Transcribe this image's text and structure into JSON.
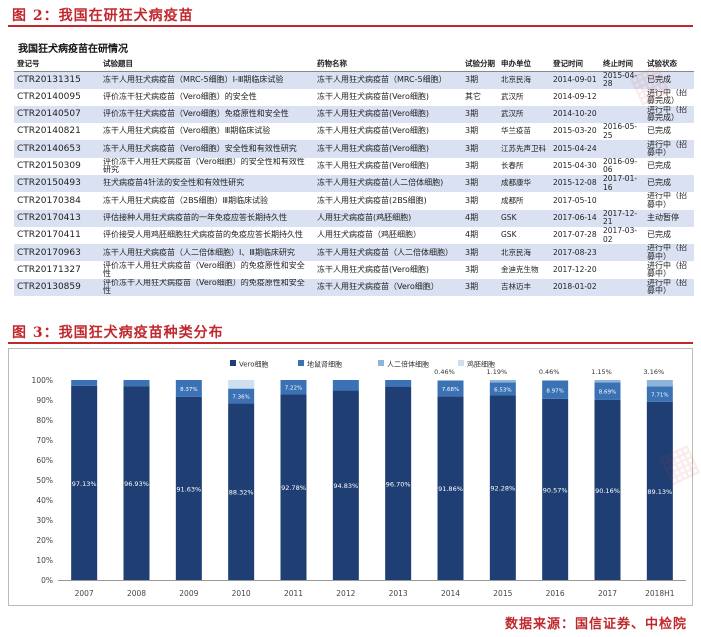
{
  "fig2": {
    "title": "图 2：我国在研狂犬病疫苗"
  },
  "table": {
    "title": "我国狂犬病疫苗在研情况",
    "headers": [
      "登记号",
      "试验题目",
      "药物名称",
      "试验分期",
      "申办单位",
      "登记时间",
      "终止时间",
      "试验状态"
    ],
    "rows": [
      [
        "CTR20131315",
        "冻干人用狂犬病疫苗（MRC-5细胞）Ⅰ-Ⅲ期临床试验",
        "冻干人用狂犬病疫苗（MRC-5细胞）",
        "3期",
        "北京民海",
        "2014-09-01",
        "2015-04-28",
        "已完成"
      ],
      [
        "CTR20140095",
        "评价冻干狂犬病疫苗（Vero细胞）的安全性",
        "冻干人用狂犬病疫苗(Vero细胞)",
        "其它",
        "武汉所",
        "2014-09-12",
        "",
        "进行中（招募完成）"
      ],
      [
        "CTR20140507",
        "评价冻干狂犬病疫苗（Vero细胞）免疫原性和安全性",
        "冻干人用狂犬病疫苗(Vero细胞)",
        "3期",
        "武汉所",
        "2014-10-20",
        "",
        "进行中（招募完成）"
      ],
      [
        "CTR20140821",
        "冻干人用狂犬病疫苗（Vero细胞）Ⅲ期临床试验",
        "冻干人用狂犬病疫苗(Vero细胞)",
        "3期",
        "华兰疫苗",
        "2015-03-20",
        "2016-05-25",
        "已完成"
      ],
      [
        "CTR20140653",
        "冻干人用狂犬病疫苗（Vero细胞）安全性和有效性研究",
        "冻干人用狂犬病疫苗(Vero细胞)",
        "3期",
        "江苏先声卫科",
        "2015-04-24",
        "",
        "进行中（招募中）"
      ],
      [
        "CTR20150309",
        "评价冻干人用狂犬病疫苗（Vero细胞）的安全性和有效性研究",
        "冻干人用狂犬病疫苗(Vero细胞)",
        "3期",
        "长春所",
        "2015-04-30",
        "2016-09-06",
        "已完成"
      ],
      [
        "CTR20150493",
        "狂犬病疫苗4针法的安全性和有效性研究",
        "冻干人用狂犬病疫苗(人二倍体细胞)",
        "3期",
        "成都康华",
        "2015-12-08",
        "2017-01-16",
        "已完成"
      ],
      [
        "CTR20170384",
        "冻干人用狂犬病疫苗（2BS细胞）Ⅲ期临床试验",
        "冻干人用狂犬病疫苗(2BS细胞)",
        "3期",
        "成都所",
        "2017-05-10",
        "",
        "进行中（招募中）"
      ],
      [
        "CTR20170413",
        "评估接种人用狂犬病疫苗的一年免疫应答长期持久性",
        "人用狂犬病疫苗(鸡胚细胞)",
        "4期",
        "GSK",
        "2017-06-14",
        "2017-12-21",
        "主动暂停"
      ],
      [
        "CTR20170411",
        "评价接受人用鸡胚细胞狂犬病疫苗的免疫应答长期持久性",
        "人用狂犬病疫苗（鸡胚细胞）",
        "4期",
        "GSK",
        "2017-07-28",
        "2017-03-02",
        "已完成"
      ],
      [
        "CTR20170963",
        "冻干人用狂犬病疫苗（人二倍体细胞）Ⅰ、Ⅲ期临床研究",
        "冻干人用狂犬病疫苗（人二倍体细胞）",
        "3期",
        "北京民海",
        "2017-08-23",
        "",
        "进行中（招募中）"
      ],
      [
        "CTR20171327",
        "评价冻干人用狂犬病疫苗（Vero细胞）的免疫原性和安全性",
        "冻干人用狂犬病疫苗(Vero细胞)",
        "3期",
        "金迪克生物",
        "2017-12-20",
        "",
        "进行中（招募中）"
      ],
      [
        "CTR20130859",
        "评价冻干人用狂犬病疫苗（Vero细胞）的免疫原性和安全性",
        "冻干人用狂犬病疫苗（Vero细胞）",
        "3期",
        "吉林迈丰",
        "2018-01-02",
        "",
        "进行中（招募中）"
      ]
    ]
  },
  "fig3": {
    "title": "图 3：我国狂犬病疫苗种类分布"
  },
  "chart_data": {
    "type": "bar",
    "stacked": true,
    "categories": [
      "2007",
      "2008",
      "2009",
      "2010",
      "2011",
      "2012",
      "2013",
      "2014",
      "2015",
      "2016",
      "2017",
      "2018H1"
    ],
    "series": [
      {
        "name": "Vero细胞",
        "color": "#1f3e73",
        "values": [
          97.13,
          96.93,
          91.63,
          88.32,
          92.78,
          94.83,
          96.7,
          91.86,
          92.28,
          90.57,
          90.16,
          89.13
        ]
      },
      {
        "name": "地鼠肾细胞",
        "color": "#3b72b5",
        "values": [
          2.87,
          3.07,
          8.37,
          7.36,
          7.22,
          5.17,
          3.3,
          7.68,
          6.53,
          8.97,
          8.69,
          7.71
        ]
      },
      {
        "name": "人二倍体细胞",
        "color": "#8fb4dc",
        "values": [
          0,
          0,
          0,
          0,
          0,
          0,
          0,
          0.46,
          1.19,
          0.46,
          1.15,
          3.16
        ]
      },
      {
        "name": "鸡胚细胞",
        "color": "#cddff0",
        "values": [
          0,
          0,
          0,
          4.32,
          0,
          0,
          0,
          0,
          0,
          0,
          0,
          0
        ]
      }
    ],
    "labels": {
      "bottom": [
        "97.13%",
        "96.93%",
        "91.63%",
        "88.32%",
        "92.78%",
        "94.83%",
        "96.70%",
        "91.86%",
        "92.28%",
        "90.57%",
        "90.16%",
        "89.13%"
      ],
      "middle": [
        "",
        "",
        "8.37%",
        "7.36%",
        "7.22%",
        "",
        "",
        "7.68%",
        "6.53%",
        "8.97%",
        "8.69%",
        "7.71%"
      ],
      "top": [
        "",
        "",
        "",
        "",
        "",
        "",
        "",
        "0.46%",
        "1.19%",
        "0.46%",
        "1.15%",
        "3.16%"
      ]
    },
    "yticks": [
      "0%",
      "10%",
      "20%",
      "30%",
      "40%",
      "50%",
      "60%",
      "70%",
      "80%",
      "90%",
      "100%"
    ],
    "ylim": [
      0,
      100
    ],
    "legend_position": "top"
  },
  "source": "数据来源：国信证券、中检院"
}
